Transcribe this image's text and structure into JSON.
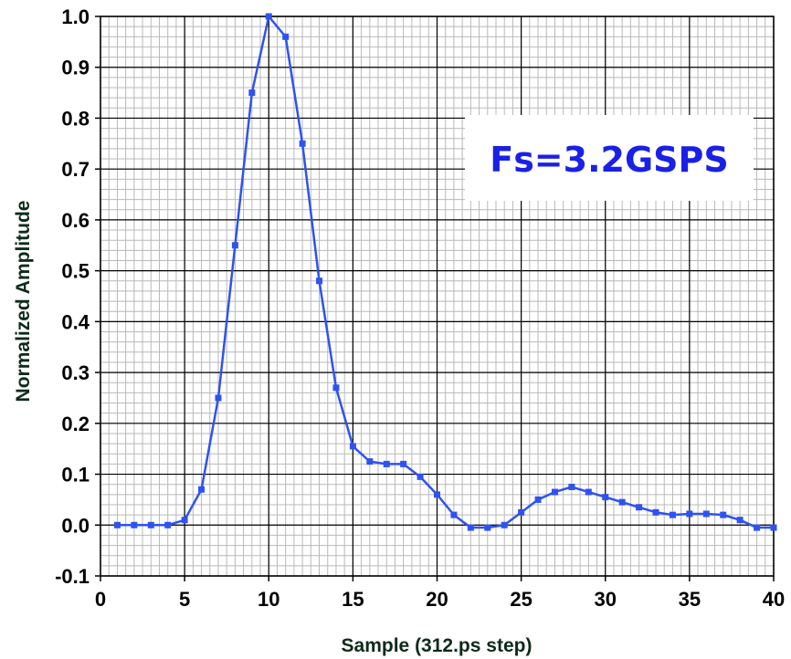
{
  "chart_data": {
    "type": "line",
    "title": "",
    "xlabel": "Sample (312.ps step)",
    "ylabel": "Normalized Amplitude",
    "xlim": [
      0,
      40
    ],
    "ylim": [
      -0.1,
      1.0
    ],
    "x_ticks": [
      "0",
      "5",
      "10",
      "15",
      "20",
      "25",
      "30",
      "35",
      "40"
    ],
    "y_ticks": [
      "-0.1",
      "0.0",
      "0.1",
      "0.2",
      "0.3",
      "0.4",
      "0.5",
      "0.6",
      "0.7",
      "0.8",
      "0.9",
      "1.0"
    ],
    "grid": true,
    "annotation": "Fs=3.2GSPS",
    "colors": {
      "series": "#2f52f0",
      "grid_minor": "#b9b9b9",
      "grid_major": "#000000",
      "annotation": "#1a20e6"
    },
    "series": [
      {
        "x": [
          1,
          2,
          3,
          4,
          5,
          6,
          7,
          8,
          9,
          10,
          11,
          12,
          13,
          14,
          15,
          16,
          17,
          18,
          19,
          20,
          21,
          22,
          23,
          24,
          25,
          26,
          27,
          28,
          29,
          30,
          31,
          32,
          33,
          34,
          35,
          36,
          37,
          38,
          39,
          40
        ],
        "values": [
          0.0,
          0.0,
          0.0,
          0.0,
          0.01,
          0.07,
          0.25,
          0.55,
          0.85,
          1.0,
          0.96,
          0.75,
          0.48,
          0.27,
          0.155,
          0.125,
          0.12,
          0.12,
          0.095,
          0.06,
          0.02,
          -0.005,
          -0.005,
          0.0,
          0.025,
          0.05,
          0.065,
          0.075,
          0.065,
          0.055,
          0.045,
          0.035,
          0.025,
          0.02,
          0.022,
          0.022,
          0.02,
          0.01,
          -0.005,
          -0.005
        ]
      }
    ]
  }
}
